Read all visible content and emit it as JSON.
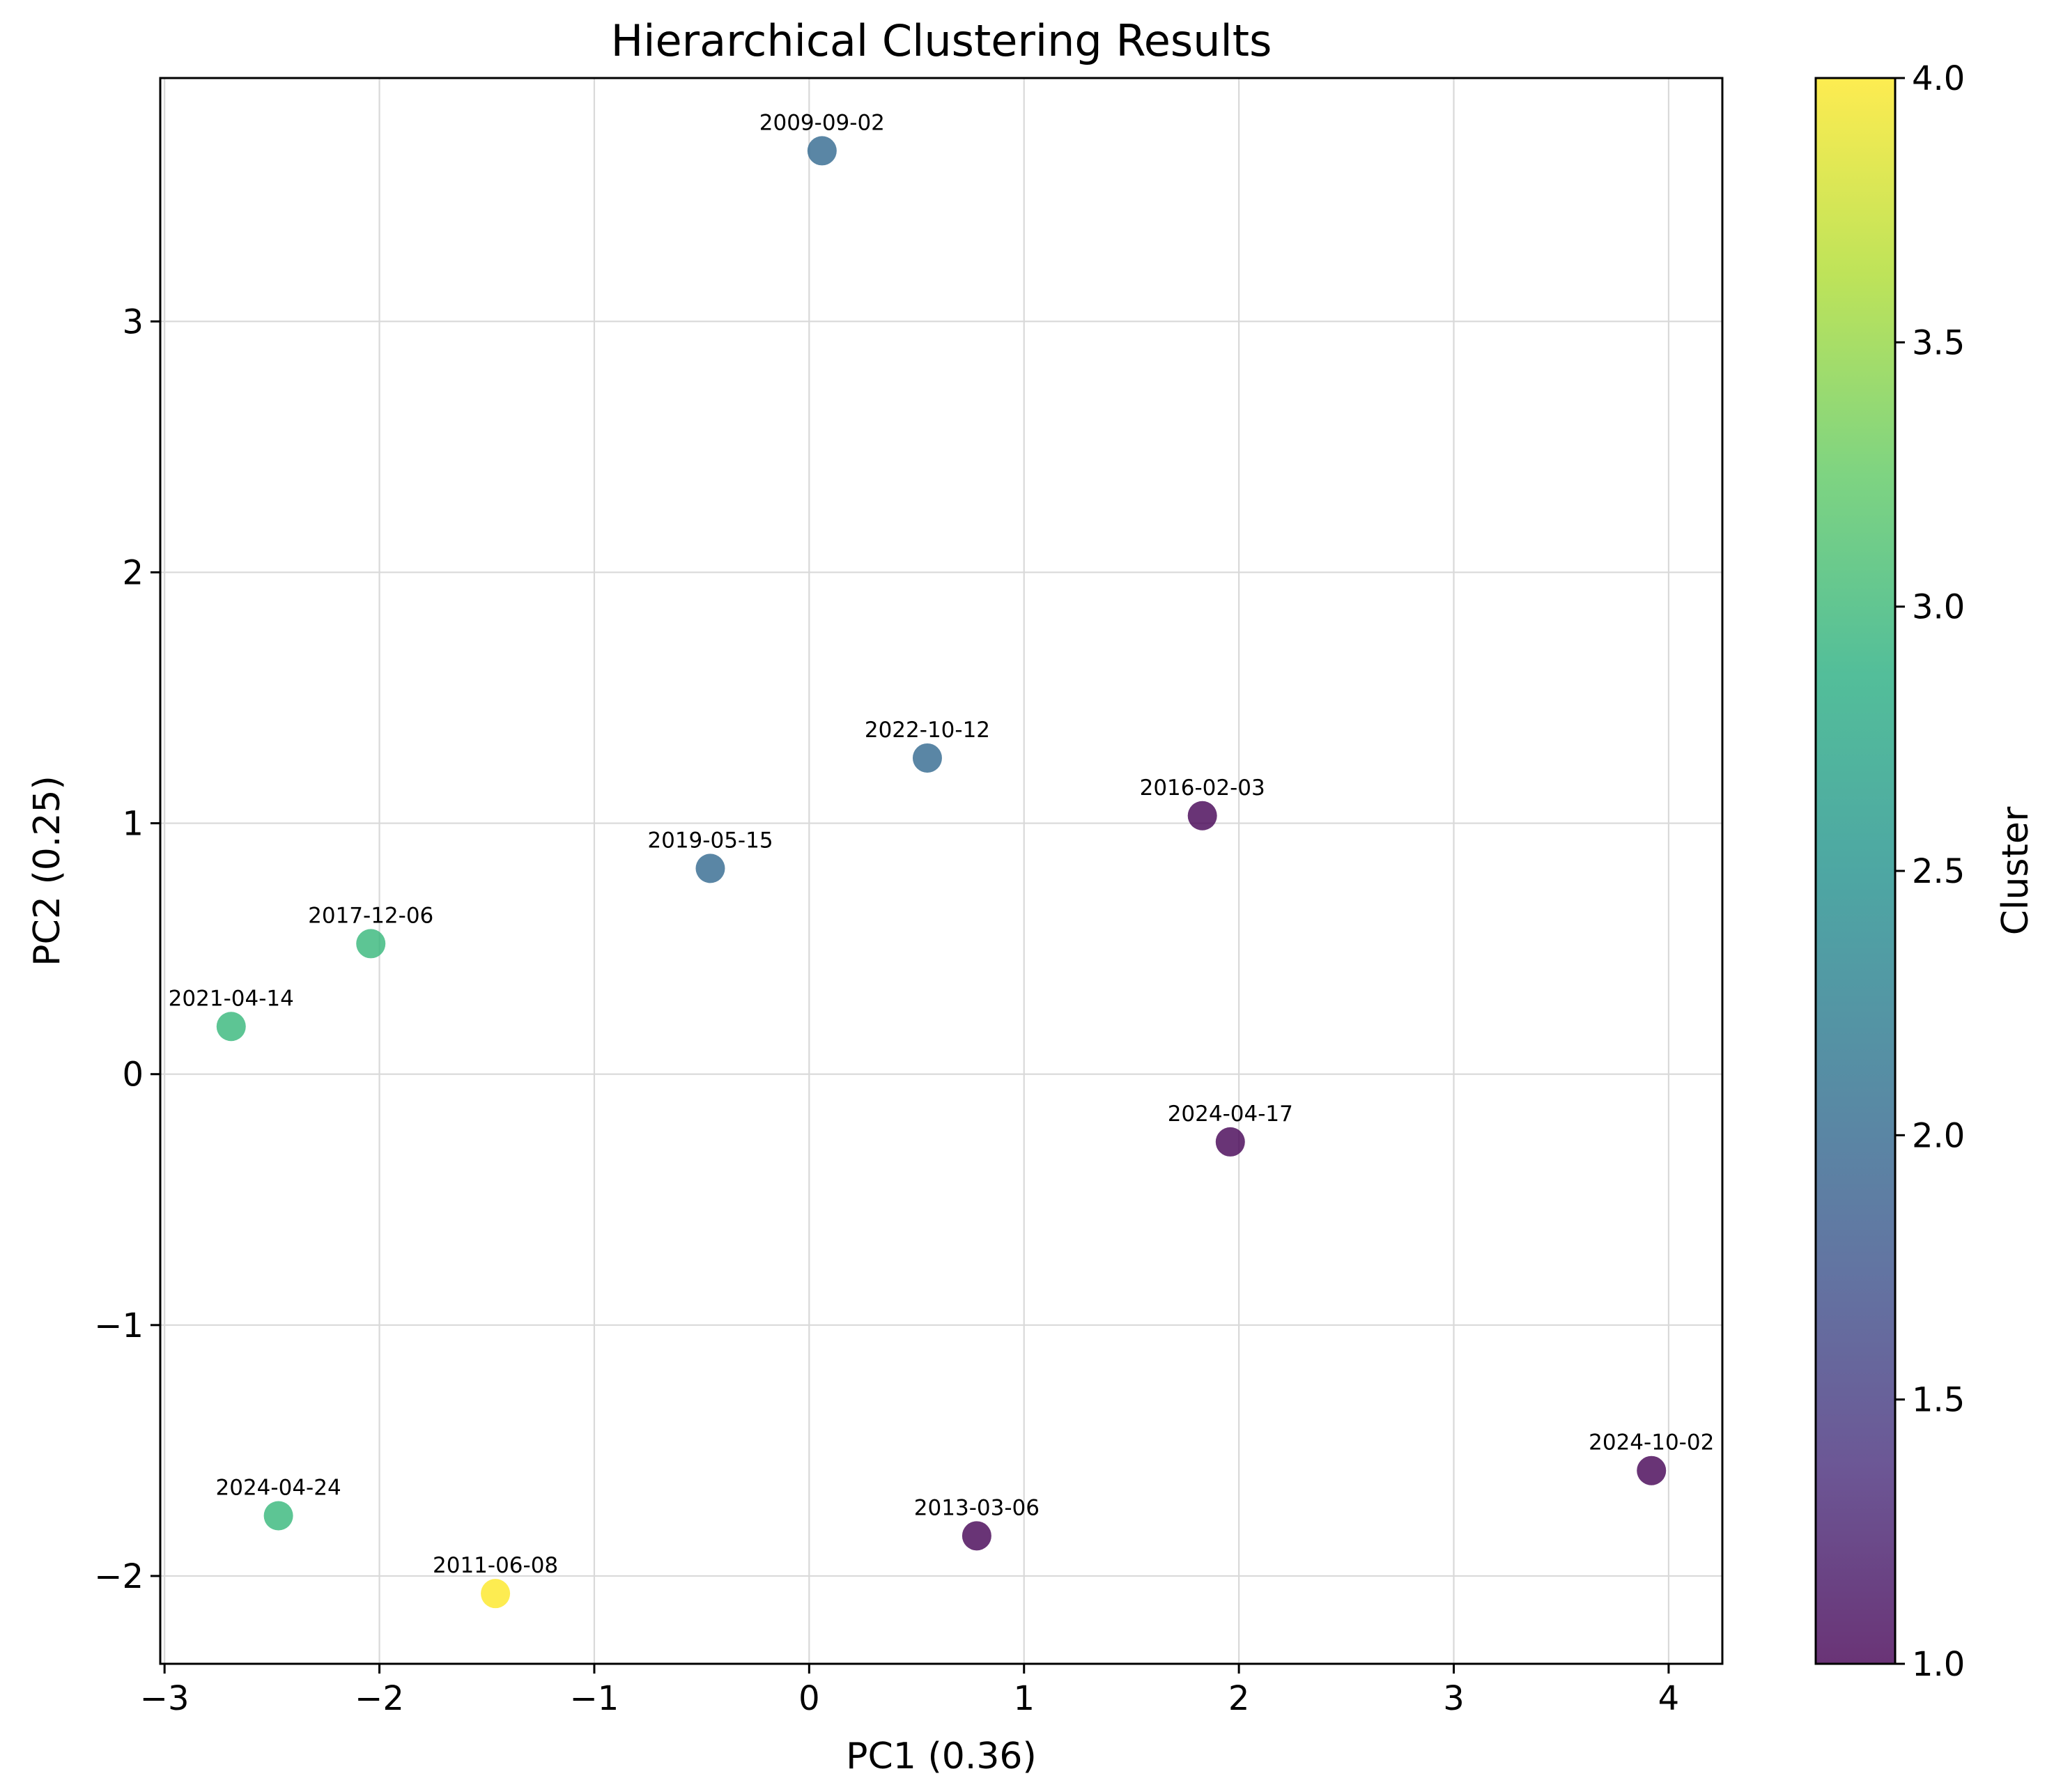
{
  "chart_data": {
    "type": "scatter",
    "title": "Hierarchical Clustering Results",
    "xlabel": "PC1 (0.36)",
    "ylabel": "PC2 (0.25)",
    "xlim": [
      -3.02,
      4.25
    ],
    "ylim": [
      -2.35,
      3.97
    ],
    "xticks": [
      -3,
      -2,
      -1,
      0,
      1,
      2,
      3,
      4
    ],
    "yticks": [
      -2,
      -1,
      0,
      1,
      2,
      3
    ],
    "grid": true,
    "colormap": "viridis",
    "colorbar": {
      "label": "Cluster",
      "range": [
        1.0,
        4.0
      ],
      "ticks": [
        "1.0",
        "1.5",
        "2.0",
        "2.5",
        "3.0",
        "3.5",
        "4.0"
      ]
    },
    "points": [
      {
        "label": "2009-09-02",
        "x": 0.06,
        "y": 3.68,
        "cluster": 2
      },
      {
        "label": "2022-10-12",
        "x": 0.55,
        "y": 1.26,
        "cluster": 2
      },
      {
        "label": "2019-05-15",
        "x": -0.46,
        "y": 0.82,
        "cluster": 2
      },
      {
        "label": "2016-02-03",
        "x": 1.83,
        "y": 1.03,
        "cluster": 1
      },
      {
        "label": "2017-12-06",
        "x": -2.04,
        "y": 0.52,
        "cluster": 3
      },
      {
        "label": "2021-04-14",
        "x": -2.69,
        "y": 0.19,
        "cluster": 3
      },
      {
        "label": "2024-04-17",
        "x": 1.96,
        "y": -0.27,
        "cluster": 1
      },
      {
        "label": "2024-10-02",
        "x": 3.92,
        "y": -1.58,
        "cluster": 1
      },
      {
        "label": "2024-04-24",
        "x": -2.47,
        "y": -1.76,
        "cluster": 3
      },
      {
        "label": "2013-03-06",
        "x": 0.78,
        "y": -1.84,
        "cluster": 1
      },
      {
        "label": "2011-06-08",
        "x": -1.46,
        "y": -2.07,
        "cluster": 4
      }
    ],
    "cluster_colors": {
      "1": "#440154",
      "2": "#31688e",
      "3": "#35b779",
      "4": "#fde725"
    }
  }
}
